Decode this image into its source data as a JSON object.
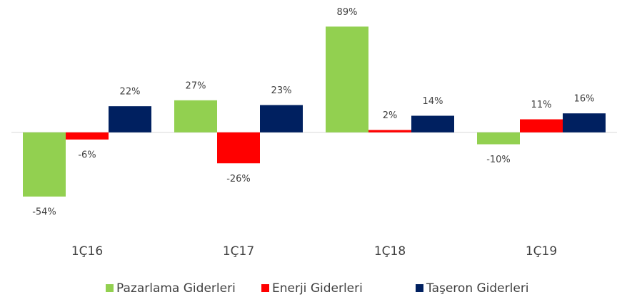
{
  "chart_data": {
    "type": "bar",
    "categories": [
      "1Ç16",
      "1Ç17",
      "1Ç18",
      "1Ç19"
    ],
    "series": [
      {
        "name": "Pazarlama Giderleri",
        "color": "#92d050",
        "values": [
          -54,
          27,
          89,
          -10
        ],
        "value_labels": [
          "-54%",
          "27%",
          "89%",
          "-10%"
        ]
      },
      {
        "name": "Enerji Giderleri",
        "color": "#ff0000",
        "values": [
          -6,
          -26,
          2,
          11
        ],
        "value_labels": [
          "-6%",
          "-26%",
          "2%",
          "11%"
        ]
      },
      {
        "name": "Taşeron Giderleri",
        "color": "#002060",
        "values": [
          22,
          23,
          14,
          16
        ],
        "value_labels": [
          "22%",
          "23%",
          "14%",
          "16%"
        ]
      }
    ],
    "ylim": [
      -60,
      100
    ],
    "legend": "bottom"
  }
}
